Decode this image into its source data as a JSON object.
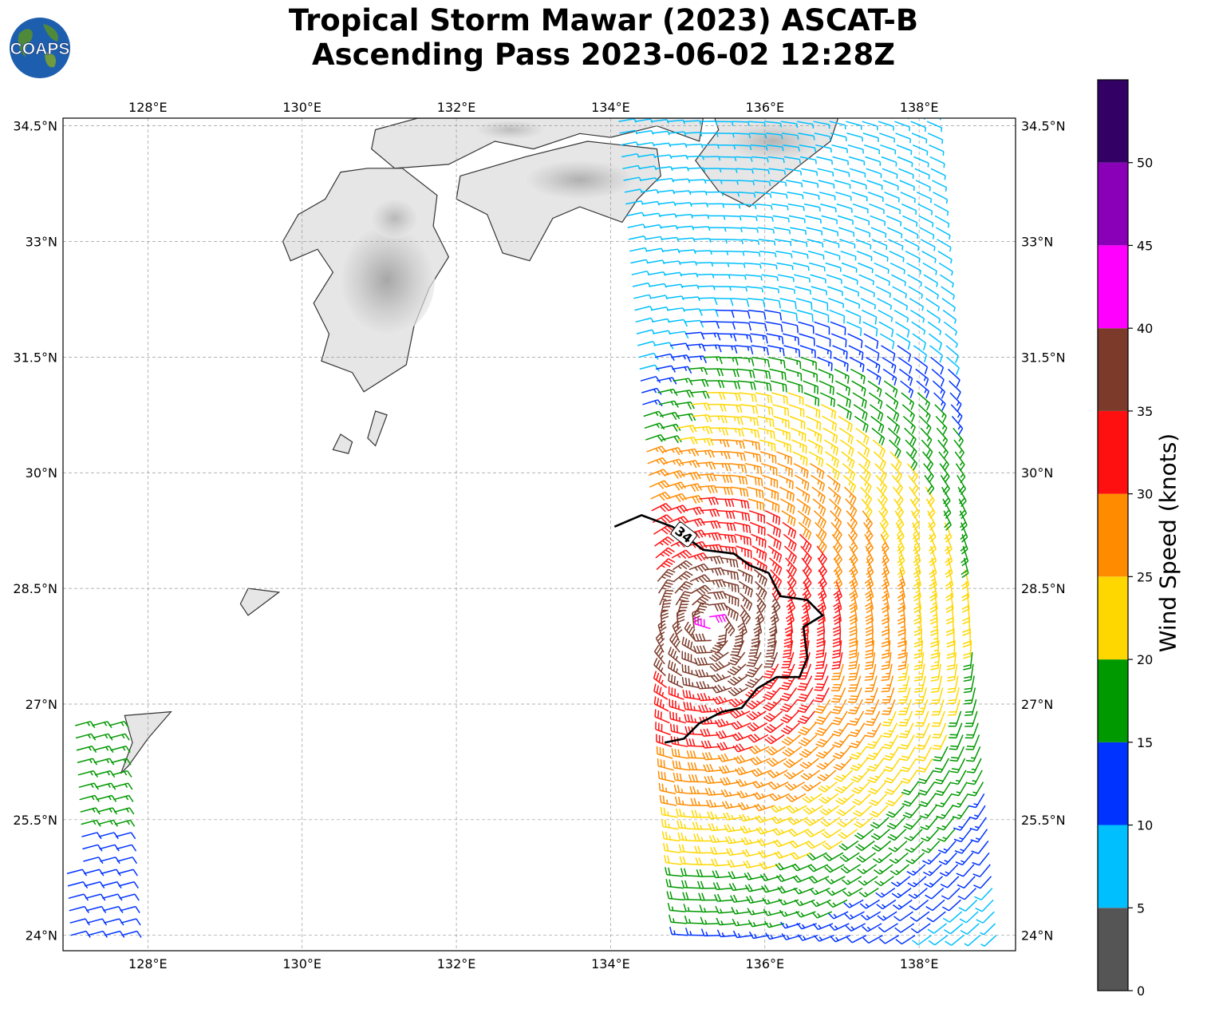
{
  "title": {
    "line1": "Tropical Storm Mawar (2023) ASCAT-B",
    "line2": "Ascending Pass 2023-06-02 12:28Z"
  },
  "logo": {
    "text": "COAPS",
    "icon": "globe-logo-icon"
  },
  "map": {
    "projection": "PlateCarree",
    "lon_range": [
      126.9,
      139.25
    ],
    "lat_range": [
      23.8,
      34.6
    ],
    "gridlines": true,
    "lon_ticks": [
      {
        "value": 128,
        "label": "128°E"
      },
      {
        "value": 130,
        "label": "130°E"
      },
      {
        "value": 132,
        "label": "132°E"
      },
      {
        "value": 134,
        "label": "134°E"
      },
      {
        "value": 136,
        "label": "136°E"
      },
      {
        "value": 138,
        "label": "138°E"
      }
    ],
    "lat_ticks": [
      {
        "value": 34.5,
        "label": "34.5°N"
      },
      {
        "value": 33,
        "label": "33°N"
      },
      {
        "value": 31.5,
        "label": "31.5°N"
      },
      {
        "value": 30,
        "label": "30°N"
      },
      {
        "value": 28.5,
        "label": "28.5°N"
      },
      {
        "value": 27,
        "label": "27°N"
      },
      {
        "value": 25.5,
        "label": "25.5°N"
      },
      {
        "value": 24,
        "label": "24°N"
      }
    ],
    "contour_34kt": {
      "label": "34",
      "color": "#000000"
    },
    "land_color": "#e6e6e6",
    "coast_color": "#333333"
  },
  "colorbar": {
    "label": "Wind Speed (knots)",
    "ticks": [
      "0",
      "5",
      "10",
      "15",
      "20",
      "25",
      "30",
      "35",
      "40",
      "45",
      "50"
    ],
    "bins": [
      {
        "min": 0,
        "max": 5,
        "color": "#555555"
      },
      {
        "min": 5,
        "max": 10,
        "color": "#00bfff"
      },
      {
        "min": 10,
        "max": 15,
        "color": "#0033ff"
      },
      {
        "min": 15,
        "max": 20,
        "color": "#009900"
      },
      {
        "min": 20,
        "max": 25,
        "color": "#ffd700"
      },
      {
        "min": 25,
        "max": 30,
        "color": "#ff8c00"
      },
      {
        "min": 30,
        "max": 35,
        "color": "#ff1010"
      },
      {
        "min": 35,
        "max": 40,
        "color": "#7b3a2a"
      },
      {
        "min": 40,
        "max": 45,
        "color": "#ff00ff"
      },
      {
        "min": 45,
        "max": 50,
        "color": "#8a00b8"
      },
      {
        "min": 50,
        "max": 55,
        "color": "#330066"
      }
    ]
  }
}
